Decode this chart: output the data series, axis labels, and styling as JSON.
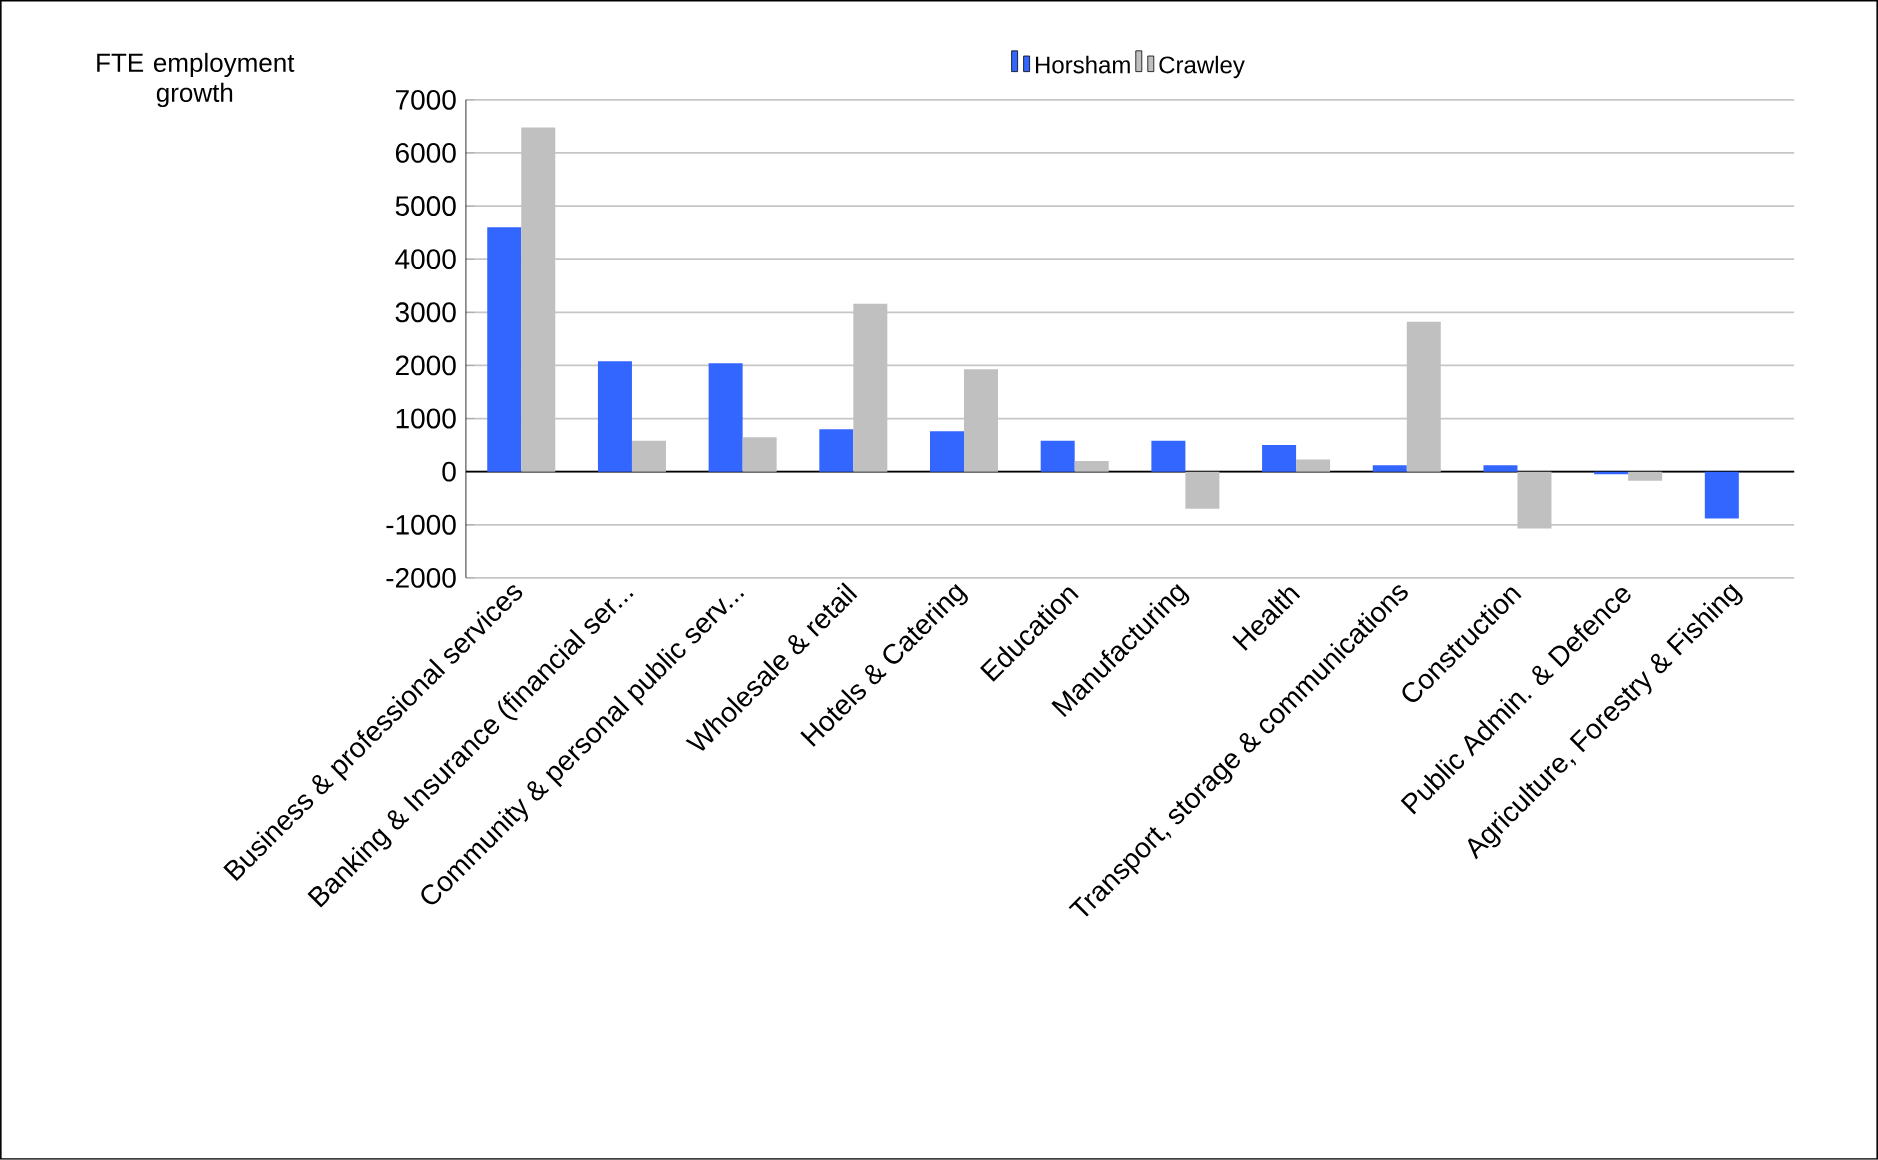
{
  "chart_data": {
    "type": "bar",
    "ylabel": "FTE employment growth",
    "categories": [
      "Business & professional services",
      "Banking & Insurance (financial ser...",
      "Community & personal public serv...",
      "Wholesale & retail",
      "Hotels & Catering",
      "Education",
      "Manufacturing",
      "Health",
      "Transport, storage & communications",
      "Construction",
      "Public Admin. & Defence",
      "Agriculture, Forestry & Fishing"
    ],
    "series": [
      {
        "name": "Horsham",
        "color": "#3366ff",
        "values": [
          4600,
          2080,
          2040,
          800,
          760,
          580,
          580,
          500,
          120,
          120,
          -50,
          -880
        ]
      },
      {
        "name": "Crawley",
        "color": "#c0c0c0",
        "values": [
          6480,
          580,
          650,
          3160,
          1930,
          200,
          -700,
          230,
          2820,
          -1070,
          -170,
          null
        ]
      }
    ],
    "ylim": [
      -2000,
      7000
    ],
    "yticks": [
      -2000,
      -1000,
      0,
      1000,
      2000,
      3000,
      4000,
      5000,
      6000,
      7000
    ],
    "grid": "y",
    "legend": "top"
  }
}
